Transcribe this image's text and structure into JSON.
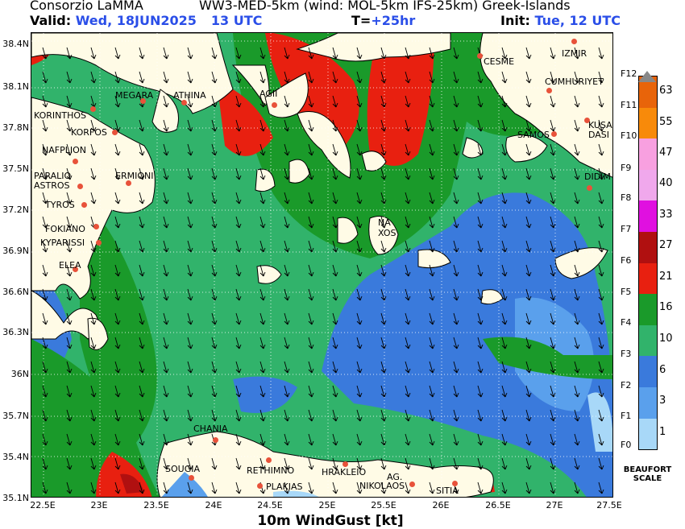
{
  "header": {
    "org": "Consorzio LaMMA",
    "model": "WW3-MED-5km (wind: MOL-5km IFS-25km) Greek-Islands",
    "valid_label": "Valid:",
    "valid_day": "Wed, 18JUN2025",
    "valid_hour": "13 UTC",
    "t_label": "T=",
    "t_value": "+25hr",
    "init_label": "Init:",
    "init_value": "Tue, 12 UTC"
  },
  "axes": {
    "lat_labels": [
      "38.4N",
      "38.1N",
      "37.8N",
      "37.5N",
      "37.2N",
      "36.9N",
      "36.6N",
      "36.3N",
      "36N",
      "35.7N",
      "35.4N",
      "35.1N"
    ],
    "lon_labels": [
      "22.5E",
      "23E",
      "23.5E",
      "24E",
      "24.5E",
      "25E",
      "25.5E",
      "26E",
      "26.5E",
      "27E",
      "27.5E"
    ],
    "x_title": "10m WindGust [kt]"
  },
  "cities": [
    {
      "name": "ATHINA"
    },
    {
      "name": "MEGARA"
    },
    {
      "name": "AGII"
    },
    {
      "name": "CESME"
    },
    {
      "name": "IZMIR"
    },
    {
      "name": "CUMHURIYET"
    },
    {
      "name": "KORINTHOS"
    },
    {
      "name": "KORFOS"
    },
    {
      "name": "NAFPLION"
    },
    {
      "name": "PARALIO"
    },
    {
      "name": "ASTROS"
    },
    {
      "name": "ERMIONI"
    },
    {
      "name": "TYROS"
    },
    {
      "name": "FOKIANO"
    },
    {
      "name": "KYPARISSI"
    },
    {
      "name": "ELEA"
    },
    {
      "name": "NA"
    },
    {
      "name": "XOS"
    },
    {
      "name": "SAMOS"
    },
    {
      "name": "KUSA"
    },
    {
      "name": "DASI"
    },
    {
      "name": "DIDIM"
    },
    {
      "name": "CHANIA"
    },
    {
      "name": "SOUGIA"
    },
    {
      "name": "RETHIMNO"
    },
    {
      "name": "PLAKIAS"
    },
    {
      "name": "HRAKLEIO"
    },
    {
      "name": "AG."
    },
    {
      "name": "NIKOLAOS"
    },
    {
      "name": "SITIA"
    }
  ],
  "legend": {
    "values": [
      "63",
      "55",
      "47",
      "40",
      "33",
      "27",
      "21",
      "16",
      "10",
      "6",
      "3",
      "1"
    ],
    "beaufort": [
      "F12",
      "F11",
      "F10",
      "F9",
      "F8",
      "F7",
      "F6",
      "F5",
      "F4",
      "F3",
      "F2",
      "F1",
      "F0"
    ],
    "title_line1": "BEAUFORT",
    "title_line2": "SCALE",
    "colors": [
      "#e8640a",
      "#f88a0a",
      "#f8a0e0",
      "#f0a8ec",
      "#e010e0",
      "#b01010",
      "#e82010",
      "#1a9a2a",
      "#31b36b",
      "#3a7adc",
      "#5aa0ec",
      "#a8d8f8"
    ]
  }
}
